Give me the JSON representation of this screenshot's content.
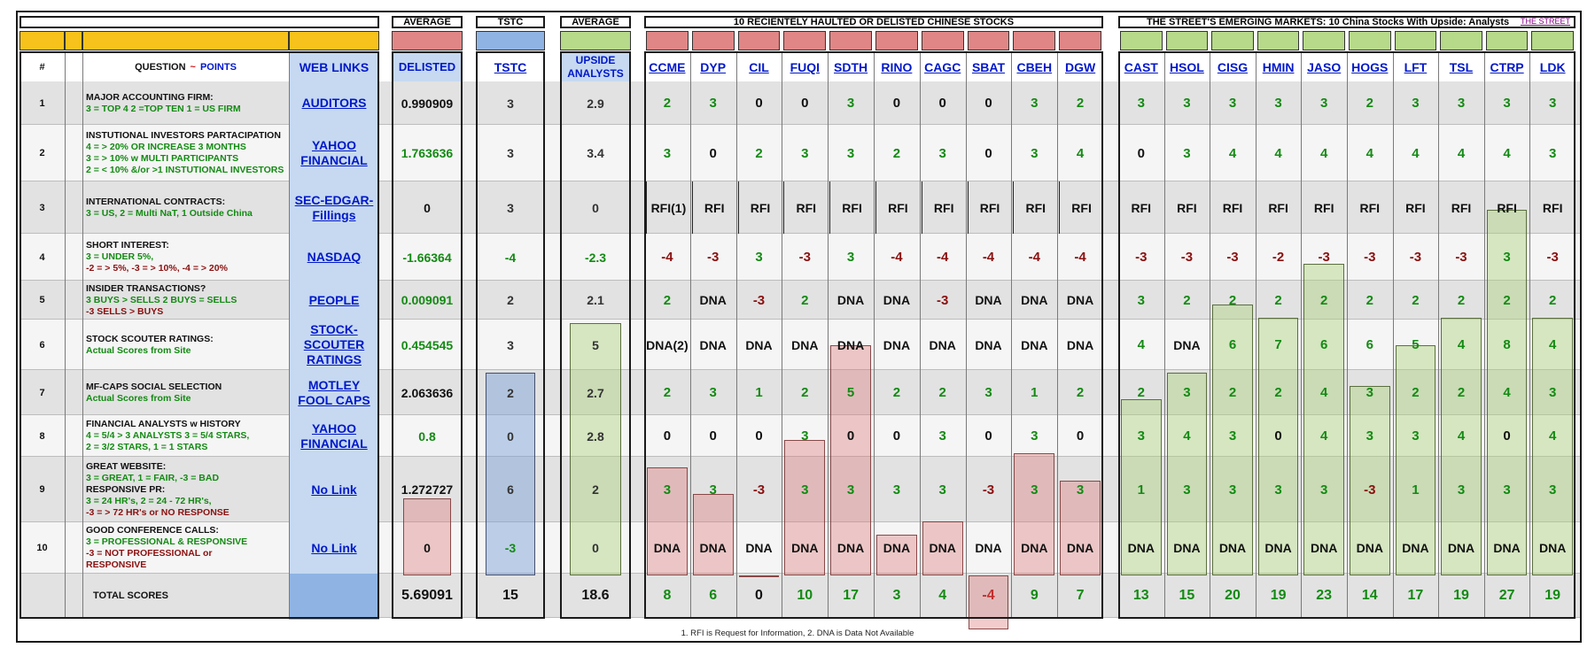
{
  "colors": {
    "red_header": "#e08686",
    "blue_header": "#8fb4e3",
    "green_header": "#b7d98a",
    "gold": "#f7c21b",
    "weblink_bg": "#8fb4e3",
    "positive": "#138a13",
    "negative": "#8a1010",
    "row_shade": "#e2e2e2"
  },
  "group_titles": {
    "avg_delisted": "AVERAGE",
    "tstc": "TSTC",
    "avg_upside": "AVERAGE",
    "delisted": "10 RECIENTELY HAULTED OR DELISTED CHINESE STOCKS",
    "emerging": "THE STREET'S EMERGING MARKETS: 10 China Stocks With Upside: Analysts",
    "emerging_link": "THE STREET"
  },
  "col_headers": {
    "num": "#",
    "question": "QUESTION",
    "question_sep": "~",
    "points": "POINTS",
    "web_links": "WEB LINKS",
    "delisted": "DELISTED",
    "tstc": "TSTC",
    "upside": "UPSIDE ANALYSTS"
  },
  "tickers_delisted": [
    "CCME",
    "DYP",
    "CIL",
    "FUQI",
    "SDTH",
    "RINO",
    "CAGC",
    "SBAT",
    "CBEH",
    "DGW"
  ],
  "tickers_upside": [
    "CAST",
    "HSOL",
    "CISG",
    "HMIN",
    "JASO",
    "HOGS",
    "LFT",
    "TSL",
    "CTRP",
    "LDK"
  ],
  "rows": [
    {
      "num": "1",
      "title": "MAJOR ACCOUNTING FIRM:",
      "lines": [
        {
          "text": "3 = TOP 4        2 =TOP TEN    1 = US FIRM",
          "c": "g"
        }
      ],
      "link": "AUDITORS",
      "avg_delisted": "0.990909",
      "tstc": "3",
      "avg_upside": "2.9",
      "delisted": [
        "2",
        "3",
        "0",
        "0",
        "3",
        "0",
        "0",
        "0",
        "3",
        "2"
      ],
      "upside": [
        "3",
        "3",
        "3",
        "3",
        "3",
        "2",
        "3",
        "3",
        "3",
        "3"
      ]
    },
    {
      "num": "2",
      "title": "INSTUTIONAL INVESTORS PARTACIPATION",
      "lines": [
        {
          "text": "4 = > 20% OR INCREASE 3 MONTHS",
          "c": "g"
        },
        {
          "text": "3 = > 10% w MULTI PARTICIPANTS",
          "c": "g"
        },
        {
          "text": "2 = < 10% &/or >1 INSTUTIONAL INVESTORS",
          "c": "g"
        }
      ],
      "link": "YAHOO FINANCIAL",
      "avg_delisted": "1.763636",
      "tstc": "3",
      "avg_upside": "3.4",
      "delisted": [
        "3",
        "0",
        "2",
        "3",
        "3",
        "2",
        "3",
        "0",
        "3",
        "4"
      ],
      "upside": [
        "0",
        "3",
        "4",
        "4",
        "4",
        "4",
        "4",
        "4",
        "4",
        "3"
      ]
    },
    {
      "num": "3",
      "title": "INTERNATIONAL CONTRACTS:",
      "lines": [
        {
          "text": "3 = US, 2 = Multi NaT, 1 Outside China",
          "c": "g"
        }
      ],
      "link": "SEC-EDGAR- Fillings",
      "avg_delisted": "0",
      "tstc": "3",
      "avg_upside": "0",
      "delisted": [
        "RFI(1)",
        "RFI",
        "RFI",
        "RFI",
        "RFI",
        "RFI",
        "RFI",
        "RFI",
        "RFI",
        "RFI"
      ],
      "upside": [
        "RFI",
        "RFI",
        "RFI",
        "RFI",
        "RFI",
        "RFI",
        "RFI",
        "RFI",
        "RFI",
        "RFI"
      ]
    },
    {
      "num": "4",
      "title": "SHORT INTEREST:",
      "lines": [
        {
          "text": "3 = UNDER 5%,",
          "c": "g"
        },
        {
          "text": "-2 = > 5%,    -3 = > 10%,    -4 = > 20%",
          "c": "r"
        }
      ],
      "link": "NASDAQ",
      "avg_delisted": "-1.66364",
      "tstc": "-4",
      "avg_upside": "-2.3",
      "delisted": [
        "-4",
        "-3",
        "3",
        "-3",
        "3",
        "-4",
        "-4",
        "-4",
        "-4",
        "-4"
      ],
      "upside": [
        "-3",
        "-3",
        "-3",
        "-2",
        "-3",
        "-3",
        "-3",
        "-3",
        "3",
        "-3"
      ]
    },
    {
      "num": "5",
      "title": "INSIDER TRANSACTIONS?",
      "lines": [
        {
          "text": "3 BUYS > SELLS  2 BUYS = SELLS",
          "c": "g"
        },
        {
          "text": "-3 SELLS > BUYS",
          "c": "r"
        }
      ],
      "link": "PEOPLE",
      "avg_delisted": "0.009091",
      "tstc": "2",
      "avg_upside": "2.1",
      "delisted": [
        "2",
        "DNA",
        "-3",
        "2",
        "DNA",
        "DNA",
        "-3",
        "DNA",
        "DNA",
        "DNA"
      ],
      "upside": [
        "3",
        "2",
        "2",
        "2",
        "2",
        "2",
        "2",
        "2",
        "2",
        "2"
      ]
    },
    {
      "num": "6",
      "title": "STOCK SCOUTER RATINGS:",
      "lines": [
        {
          "text": "Actual Scores from Site",
          "c": "g"
        }
      ],
      "link": "STOCK- SCOUTER RATINGS",
      "avg_delisted": "0.454545",
      "tstc": "3",
      "avg_upside": "5",
      "delisted": [
        "DNA(2)",
        "DNA",
        "DNA",
        "DNA",
        "DNA",
        "DNA",
        "DNA",
        "DNA",
        "DNA",
        "DNA"
      ],
      "upside": [
        "4",
        "DNA",
        "6",
        "7",
        "6",
        "6",
        "5",
        "4",
        "8",
        "4"
      ]
    },
    {
      "num": "7",
      "title": "MF-CAPS SOCIAL SELECTION",
      "lines": [
        {
          "text": "Actual Scores from Site",
          "c": "g"
        }
      ],
      "link": "MOTLEY FOOL CAPS",
      "avg_delisted": "2.063636",
      "tstc": "2",
      "avg_upside": "2.7",
      "delisted": [
        "2",
        "3",
        "1",
        "2",
        "5",
        "2",
        "2",
        "3",
        "1",
        "2"
      ],
      "upside": [
        "2",
        "3",
        "2",
        "2",
        "4",
        "3",
        "2",
        "2",
        "4",
        "3"
      ]
    },
    {
      "num": "8",
      "title": "FINANCIAL ANALYSTS w HISTORY",
      "lines": [
        {
          "text": "4 = 5/4 > 3 ANALYSTS    3 = 5/4 STARS,",
          "c": "g"
        },
        {
          "text": "2 = 3/2 STARS,            1 = 1 STARS",
          "c": "g"
        }
      ],
      "link": "YAHOO FINANCIAL",
      "avg_delisted": "0.8",
      "tstc": "0",
      "avg_upside": "2.8",
      "delisted": [
        "0",
        "0",
        "0",
        "3",
        "0",
        "0",
        "3",
        "0",
        "3",
        "0"
      ],
      "upside": [
        "3",
        "4",
        "3",
        "0",
        "4",
        "3",
        "3",
        "4",
        "0",
        "4"
      ]
    },
    {
      "num": "9",
      "title": "GREAT WEBSITE:",
      "lines": [
        {
          "text": "3 = GREAT,       1 = FAIR,     -3 = BAD",
          "c": "mix"
        },
        {
          "text": "RESPONSIVE PR:",
          "c": "t"
        },
        {
          "text": "3 = 24 HR's,   2 = 24 - 72 HR's,",
          "c": "g"
        },
        {
          "text": "-3 = > 72 HR's or NO RESPONSE",
          "c": "r"
        }
      ],
      "link": "No Link",
      "avg_delisted": "1.272727",
      "tstc": "6",
      "avg_upside": "2",
      "delisted": [
        "3",
        "3",
        "-3",
        "3",
        "3",
        "3",
        "3",
        "-3",
        "3",
        "3"
      ],
      "upside": [
        "1",
        "3",
        "3",
        "3",
        "3",
        "-3",
        "1",
        "3",
        "3",
        "3"
      ]
    },
    {
      "num": "10",
      "title": "GOOD CONFERENCE CALLS:",
      "lines": [
        {
          "text": "3 = PROFESSIONAL & RESPONSIVE",
          "c": "g"
        },
        {
          "text": "-3 = NOT PROFESSIONAL or",
          "c": "r"
        },
        {
          "text": "RESPONSIVE",
          "c": "r"
        }
      ],
      "link": "No Link",
      "avg_delisted": "0",
      "tstc": "-3",
      "avg_upside": "0",
      "delisted": [
        "DNA",
        "DNA",
        "DNA",
        "DNA",
        "DNA",
        "DNA",
        "DNA",
        "DNA",
        "DNA",
        "DNA"
      ],
      "upside": [
        "DNA",
        "DNA",
        "DNA",
        "DNA",
        "DNA",
        "DNA",
        "DNA",
        "DNA",
        "DNA",
        "DNA"
      ]
    }
  ],
  "totals": {
    "label": "TOTAL SCORES",
    "avg_delisted": "5.69091",
    "tstc": "15",
    "avg_upside": "18.6",
    "delisted": [
      "8",
      "6",
      "0",
      "10",
      "17",
      "3",
      "4",
      "-4",
      "9",
      "7"
    ],
    "upside": [
      "13",
      "15",
      "20",
      "19",
      "23",
      "14",
      "17",
      "19",
      "27",
      "19"
    ]
  },
  "footnote": "1. RFI is Request for Information, 2. DNA is Data Not Available",
  "chart_data": {
    "type": "bar",
    "title": "",
    "categories": [
      "DELISTED",
      "TSTC",
      "UPSIDE ANALYSTS",
      "CCME",
      "DYP",
      "CIL",
      "FUQI",
      "SDTH",
      "RINO",
      "CAGC",
      "SBAT",
      "CBEH",
      "DGW",
      "CAST",
      "HSOL",
      "CISG",
      "HMIN",
      "JASO",
      "HOGS",
      "LFT",
      "TSL",
      "CTRP",
      "LDK"
    ],
    "values": [
      5.69091,
      15,
      18.6,
      8,
      6,
      0,
      10,
      17,
      3,
      4,
      -4,
      9,
      7,
      13,
      15,
      20,
      19,
      23,
      14,
      17,
      19,
      27,
      19
    ]
  }
}
